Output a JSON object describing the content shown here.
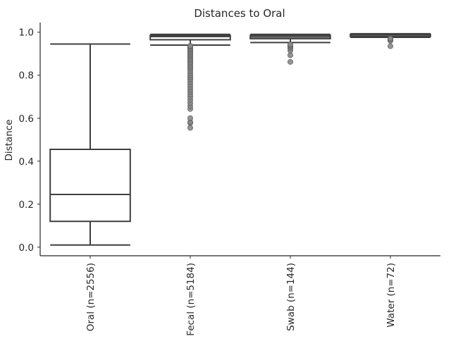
{
  "chart_data": {
    "type": "box",
    "title": "Distances to Oral",
    "xlabel": "",
    "ylabel": "Distance",
    "ylim": [
      -0.04,
      1.045
    ],
    "yticks": [
      0.0,
      0.2,
      0.4,
      0.6,
      0.8,
      1.0
    ],
    "ytick_labels": [
      "0.0",
      "0.2",
      "0.4",
      "0.6",
      "0.8",
      "1.0"
    ],
    "grid": false,
    "categories": [
      "Oral (n=2556)",
      "Fecal (n=5184)",
      "Swab (n=144)",
      "Water (n=72)"
    ],
    "boxes": [
      {
        "category": "Oral (n=2556)",
        "whisker_low": 0.01,
        "q1": 0.12,
        "median": 0.245,
        "q3": 0.455,
        "whisker_high": 0.945,
        "outliers": []
      },
      {
        "category": "Fecal (n=5184)",
        "whisker_low": 0.94,
        "q1": 0.965,
        "median": 0.98,
        "q3": 0.985,
        "whisker_high": 0.99,
        "outliers": [
          0.555,
          0.578,
          0.582,
          0.6,
          0.643,
          0.656,
          0.67,
          0.684,
          0.698,
          0.71,
          0.722,
          0.733,
          0.745,
          0.756,
          0.768,
          0.78,
          0.79,
          0.8,
          0.81,
          0.82,
          0.83,
          0.838,
          0.846,
          0.854,
          0.862,
          0.87,
          0.878,
          0.886,
          0.893,
          0.9,
          0.907,
          0.914,
          0.92,
          0.926,
          0.932,
          0.937
        ]
      },
      {
        "category": "Swab (n=144)",
        "whisker_low": 0.952,
        "q1": 0.97,
        "median": 0.978,
        "q3": 0.985,
        "whisker_high": 0.99,
        "outliers": [
          0.862,
          0.893,
          0.915,
          0.925,
          0.932,
          0.938,
          0.943
        ]
      },
      {
        "category": "Water (n=72)",
        "whisker_low": 0.976,
        "q1": 0.98,
        "median": 0.987,
        "q3": 0.99,
        "whisker_high": 0.993,
        "outliers": [
          0.935,
          0.96,
          0.966,
          0.971
        ]
      }
    ],
    "colors": {
      "box_edge": "#3f3f3f",
      "box_fill": "#ffffff",
      "outlier": "#8a8a8a",
      "axis": "#262626",
      "text": "#262626"
    }
  }
}
